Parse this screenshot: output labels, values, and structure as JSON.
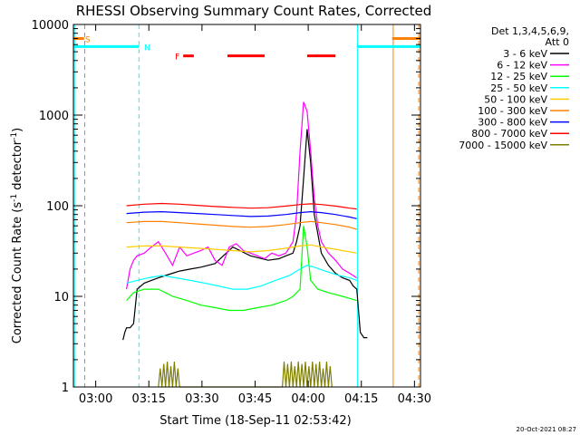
{
  "chart_data": {
    "type": "line",
    "title": "RHESSI Observing Summary Count Rates, Corrected",
    "xlabel": "Start Time (18-Sep-11 02:53:42)",
    "ylabel": "Corrected Count Rate (s",
    "ylabel_sup": "-1",
    "ylabel_mid": " detector",
    "ylabel_sup2": "-1",
    "ylabel_end": ")",
    "yscale": "log",
    "ylim": [
      1,
      10000
    ],
    "xlim_minutes": [
      0,
      98
    ],
    "x_ticks": [
      "03:00",
      "03:15",
      "03:30",
      "03:45",
      "04:00",
      "04:15",
      "04:30"
    ],
    "x_tick_minutes": [
      6.3,
      21.3,
      36.3,
      51.3,
      66.3,
      81.3,
      96.3
    ],
    "y_ticks": [
      "1",
      "10",
      "100",
      "1000",
      "10000"
    ],
    "y_tick_values": [
      1,
      10,
      100,
      1000,
      10000
    ],
    "legend": {
      "header1": "Det 1,3,4,5,6,9,",
      "header2": "Att 0",
      "placement": "right"
    },
    "series": [
      {
        "name": "3 - 6 keV",
        "color": "#000000",
        "points": [
          [
            14,
            3.3
          ],
          [
            14.5,
            4
          ],
          [
            15,
            4.5
          ],
          [
            16,
            4.5
          ],
          [
            17,
            5
          ],
          [
            18,
            12
          ],
          [
            20,
            14
          ],
          [
            22,
            15
          ],
          [
            24,
            16
          ],
          [
            26,
            17
          ],
          [
            28,
            18
          ],
          [
            30,
            19
          ],
          [
            33,
            20
          ],
          [
            36,
            21
          ],
          [
            40,
            23
          ],
          [
            45,
            35
          ],
          [
            50,
            28
          ],
          [
            55,
            25
          ],
          [
            58,
            26
          ],
          [
            60,
            28
          ],
          [
            62,
            30
          ],
          [
            63,
            40
          ],
          [
            64,
            60
          ],
          [
            65,
            200
          ],
          [
            66,
            700
          ],
          [
            67,
            300
          ],
          [
            68,
            80
          ],
          [
            70,
            30
          ],
          [
            72,
            22
          ],
          [
            74,
            18
          ],
          [
            76,
            16
          ],
          [
            78,
            15
          ],
          [
            79,
            13
          ],
          [
            80,
            12
          ],
          [
            81,
            4
          ],
          [
            82,
            3.5
          ],
          [
            83,
            3.5
          ]
        ]
      },
      {
        "name": "6 - 12 keV",
        "color": "#ff00ff",
        "points": [
          [
            15,
            12
          ],
          [
            16,
            20
          ],
          [
            17,
            25
          ],
          [
            18,
            28
          ],
          [
            20,
            30
          ],
          [
            22,
            35
          ],
          [
            24,
            40
          ],
          [
            26,
            30
          ],
          [
            28,
            22
          ],
          [
            30,
            35
          ],
          [
            32,
            28
          ],
          [
            34,
            30
          ],
          [
            36,
            32
          ],
          [
            38,
            35
          ],
          [
            40,
            25
          ],
          [
            42,
            22
          ],
          [
            44,
            35
          ],
          [
            46,
            38
          ],
          [
            48,
            32
          ],
          [
            50,
            30
          ],
          [
            52,
            28
          ],
          [
            54,
            26
          ],
          [
            56,
            30
          ],
          [
            58,
            28
          ],
          [
            60,
            30
          ],
          [
            62,
            40
          ],
          [
            63,
            80
          ],
          [
            64,
            400
          ],
          [
            65,
            1400
          ],
          [
            66,
            1100
          ],
          [
            67,
            400
          ],
          [
            68,
            120
          ],
          [
            69,
            60
          ],
          [
            70,
            40
          ],
          [
            72,
            30
          ],
          [
            74,
            25
          ],
          [
            76,
            20
          ],
          [
            78,
            18
          ],
          [
            80,
            16
          ]
        ]
      },
      {
        "name": "12 - 25 keV",
        "color": "#00ff00",
        "points": [
          [
            15,
            9
          ],
          [
            17,
            11
          ],
          [
            20,
            12
          ],
          [
            24,
            12
          ],
          [
            28,
            10
          ],
          [
            32,
            9
          ],
          [
            36,
            8
          ],
          [
            40,
            7.5
          ],
          [
            44,
            7
          ],
          [
            48,
            7
          ],
          [
            52,
            7.5
          ],
          [
            56,
            8
          ],
          [
            60,
            9
          ],
          [
            62,
            10
          ],
          [
            64,
            12
          ],
          [
            65,
            60
          ],
          [
            66,
            35
          ],
          [
            67,
            15
          ],
          [
            69,
            12
          ],
          [
            72,
            11
          ],
          [
            76,
            10
          ],
          [
            80,
            9
          ]
        ]
      },
      {
        "name": "25 - 50 keV",
        "color": "#00ffff",
        "points": [
          [
            15,
            14
          ],
          [
            18,
            15
          ],
          [
            21,
            16
          ],
          [
            25,
            17
          ],
          [
            29,
            16
          ],
          [
            33,
            15
          ],
          [
            37,
            14
          ],
          [
            41,
            13
          ],
          [
            45,
            12
          ],
          [
            49,
            12
          ],
          [
            53,
            13
          ],
          [
            57,
            15
          ],
          [
            61,
            17
          ],
          [
            64,
            20
          ],
          [
            66,
            22
          ],
          [
            68,
            21
          ],
          [
            71,
            19
          ],
          [
            75,
            17
          ],
          [
            78,
            16
          ],
          [
            80,
            15
          ]
        ]
      },
      {
        "name": "50 - 100 keV",
        "color": "#ffcc00",
        "points": [
          [
            15,
            35
          ],
          [
            20,
            36
          ],
          [
            25,
            36
          ],
          [
            30,
            35
          ],
          [
            35,
            34
          ],
          [
            40,
            33
          ],
          [
            45,
            32
          ],
          [
            50,
            31
          ],
          [
            55,
            32
          ],
          [
            60,
            34
          ],
          [
            64,
            36
          ],
          [
            67,
            37
          ],
          [
            70,
            35
          ],
          [
            74,
            33
          ],
          [
            78,
            31
          ],
          [
            80,
            30
          ]
        ]
      },
      {
        "name": "100 - 300 keV",
        "color": "#ff8000",
        "points": [
          [
            15,
            65
          ],
          [
            20,
            67
          ],
          [
            25,
            67
          ],
          [
            30,
            65
          ],
          [
            35,
            63
          ],
          [
            40,
            61
          ],
          [
            45,
            59
          ],
          [
            50,
            58
          ],
          [
            55,
            59
          ],
          [
            60,
            62
          ],
          [
            64,
            65
          ],
          [
            67,
            67
          ],
          [
            70,
            65
          ],
          [
            74,
            62
          ],
          [
            78,
            58
          ],
          [
            80,
            55
          ]
        ]
      },
      {
        "name": "300 - 800 keV",
        "color": "#0000ff",
        "points": [
          [
            15,
            82
          ],
          [
            20,
            85
          ],
          [
            25,
            86
          ],
          [
            30,
            84
          ],
          [
            35,
            82
          ],
          [
            40,
            80
          ],
          [
            45,
            78
          ],
          [
            50,
            76
          ],
          [
            55,
            77
          ],
          [
            60,
            80
          ],
          [
            64,
            84
          ],
          [
            67,
            86
          ],
          [
            70,
            84
          ],
          [
            74,
            80
          ],
          [
            78,
            75
          ],
          [
            80,
            72
          ]
        ]
      },
      {
        "name": "800 - 7000 keV",
        "color": "#ff0000",
        "points": [
          [
            15,
            100
          ],
          [
            20,
            104
          ],
          [
            25,
            106
          ],
          [
            30,
            104
          ],
          [
            35,
            101
          ],
          [
            40,
            98
          ],
          [
            45,
            96
          ],
          [
            50,
            94
          ],
          [
            55,
            95
          ],
          [
            60,
            99
          ],
          [
            64,
            103
          ],
          [
            67,
            105
          ],
          [
            70,
            103
          ],
          [
            74,
            99
          ],
          [
            78,
            94
          ],
          [
            80,
            92
          ]
        ]
      },
      {
        "name": "7000 - 15000 keV",
        "color": "#808000",
        "points": [
          [
            24,
            1
          ],
          [
            24.5,
            1.6
          ],
          [
            25,
            1
          ],
          [
            25.5,
            1.8
          ],
          [
            26,
            1
          ],
          [
            26.5,
            1.9
          ],
          [
            27,
            1
          ],
          [
            27.5,
            1.7
          ],
          [
            28,
            1
          ],
          [
            28.5,
            1.9
          ],
          [
            29,
            1
          ],
          [
            29.5,
            1.6
          ],
          [
            30,
            1
          ],
          [
            59,
            1
          ],
          [
            59.5,
            1.9
          ],
          [
            60,
            1
          ],
          [
            60.5,
            1.8
          ],
          [
            61,
            1
          ],
          [
            61.5,
            1.9
          ],
          [
            62,
            1
          ],
          [
            62.5,
            1.7
          ],
          [
            63,
            1
          ],
          [
            63.5,
            1.9
          ],
          [
            64,
            1
          ],
          [
            64.5,
            1.8
          ],
          [
            65,
            1
          ],
          [
            65.5,
            1.9
          ],
          [
            66,
            1
          ],
          [
            66.5,
            1.7
          ],
          [
            67,
            1
          ],
          [
            67.5,
            1.9
          ],
          [
            68,
            1
          ],
          [
            68.5,
            1.8
          ],
          [
            69,
            1
          ],
          [
            69.5,
            1.9
          ],
          [
            70,
            1
          ],
          [
            70.5,
            1.6
          ],
          [
            71,
            1
          ],
          [
            71.5,
            1.9
          ],
          [
            72,
            1
          ],
          [
            72.5,
            1.7
          ],
          [
            73,
            1
          ]
        ]
      }
    ],
    "annotations": {
      "flags": [
        {
          "label": "S",
          "color": "#ff8000",
          "segments": [
            [
              0,
              3
            ]
          ],
          "level": 7000,
          "label_at": 3.3
        },
        {
          "label": "N",
          "color": "#00ffff",
          "segments": [
            [
              0,
              18.5
            ],
            [
              80,
              98
            ]
          ],
          "level": 5700,
          "label_at": 20
        },
        {
          "label": "F",
          "color": "#ff0000",
          "segments": [
            [
              31,
              34
            ],
            [
              43.5,
              54
            ],
            [
              66,
              74
            ]
          ],
          "level": 4500,
          "label_at": 28.7
        },
        {
          "label": "",
          "color": "#ff8000",
          "segments": [
            [
              90,
              98
            ]
          ],
          "level": 7000,
          "label_at": null
        }
      ],
      "vlines": [
        {
          "minute": 0.3,
          "color": "#00ffff",
          "style": "solid"
        },
        {
          "minute": 3.2,
          "color": "#ff8000",
          "style": "dashed"
        },
        {
          "minute": 18.5,
          "color": "#00ffff",
          "style": "dashed"
        },
        {
          "minute": 80.2,
          "color": "#00ffff",
          "style": "solid"
        },
        {
          "minute": 90.3,
          "color": "#ff8000",
          "style": "solid"
        },
        {
          "minute": 97.5,
          "color": "#ff8000",
          "style": "dashed"
        }
      ]
    },
    "footer_date": "20-Oct-2021 08:27"
  }
}
